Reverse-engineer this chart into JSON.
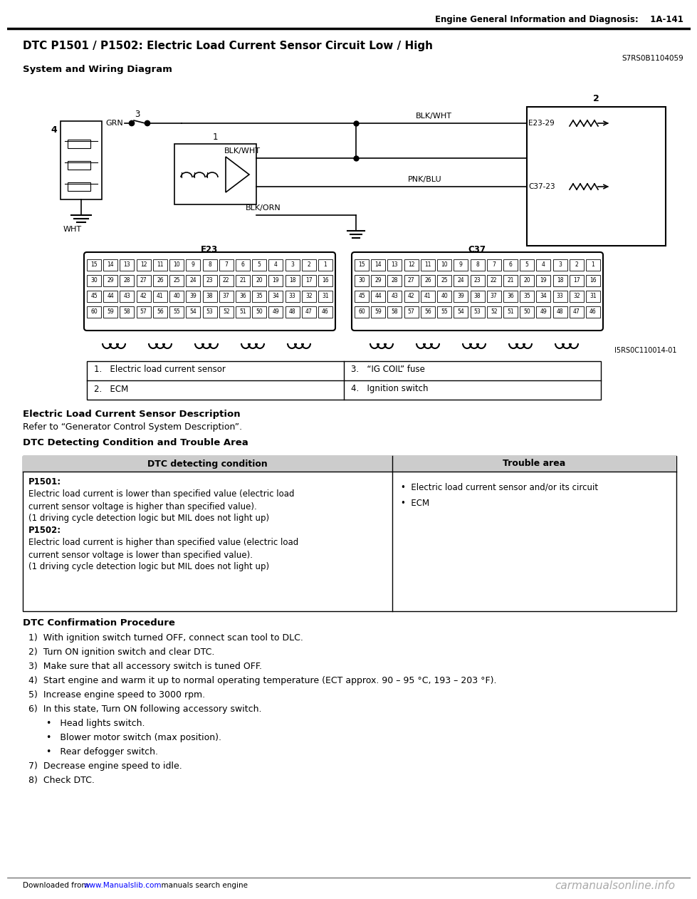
{
  "page_header": "Engine General Information and Diagnosis:    1A-141",
  "title": "DTC P1501 / P1502: Electric Load Current Sensor Circuit Low / High",
  "part_number": "S7RS0B1104059",
  "section_wiring": "System and Wiring Diagram",
  "diagram_ref": "I5RS0C110014-01",
  "legend_items": [
    [
      "1.   Electric load current sensor",
      "3.   “IG COIL” fuse"
    ],
    [
      "2.   ECM",
      "4.   Ignition switch"
    ]
  ],
  "section_desc_title": "Electric Load Current Sensor Description",
  "section_desc_body": "Refer to “Generator Control System Description”.",
  "section_dtc_title": "DTC Detecting Condition and Trouble Area",
  "dtc_table_header": [
    "DTC detecting condition",
    "Trouble area"
  ],
  "dtc_col1_lines": [
    [
      "P1501:",
      true
    ],
    [
      "Electric load current is lower than specified value (electric load",
      false
    ],
    [
      "current sensor voltage is higher than specified value).",
      false
    ],
    [
      "(1 driving cycle detection logic but MIL does not light up)",
      false
    ],
    [
      "P1502:",
      true
    ],
    [
      "Electric load current is higher than specified value (electric load",
      false
    ],
    [
      "current sensor voltage is lower than specified value).",
      false
    ],
    [
      "(1 driving cycle detection logic but MIL does not light up)",
      false
    ]
  ],
  "dtc_col2_lines": [
    "•  Electric load current sensor and/or its circuit",
    "•  ECM"
  ],
  "section_proc_title": "DTC Confirmation Procedure",
  "proc_steps": [
    {
      "text": "1)  With ignition switch turned OFF, connect scan tool to DLC.",
      "indent": 30
    },
    {
      "text": "2)  Turn ON ignition switch and clear DTC.",
      "indent": 30
    },
    {
      "text": "3)  Make sure that all accessory switch is tuned OFF.",
      "indent": 30
    },
    {
      "text": "4)  Start engine and warm it up to normal operating temperature (ECT approx. 90 – 95 °C, 193 – 203 °F).",
      "indent": 30
    },
    {
      "text": "5)  Increase engine speed to 3000 rpm.",
      "indent": 30
    },
    {
      "text": "6)  In this state, Turn ON following accessory switch.",
      "indent": 30
    },
    {
      "text": "•   Head lights switch.",
      "indent": 55
    },
    {
      "text": "•   Blower motor switch (max position).",
      "indent": 55
    },
    {
      "text": "•   Rear defogger switch.",
      "indent": 55
    },
    {
      "text": "7)  Decrease engine speed to idle.",
      "indent": 30
    },
    {
      "text": "8)  Check DTC.",
      "indent": 30
    }
  ],
  "footer_left1": "Downloaded from ",
  "footer_link": "www.Manualslib.com",
  "footer_left2": "  manuals search engine",
  "footer_right": "carmanualsonline.info",
  "bg_color": "#ffffff"
}
